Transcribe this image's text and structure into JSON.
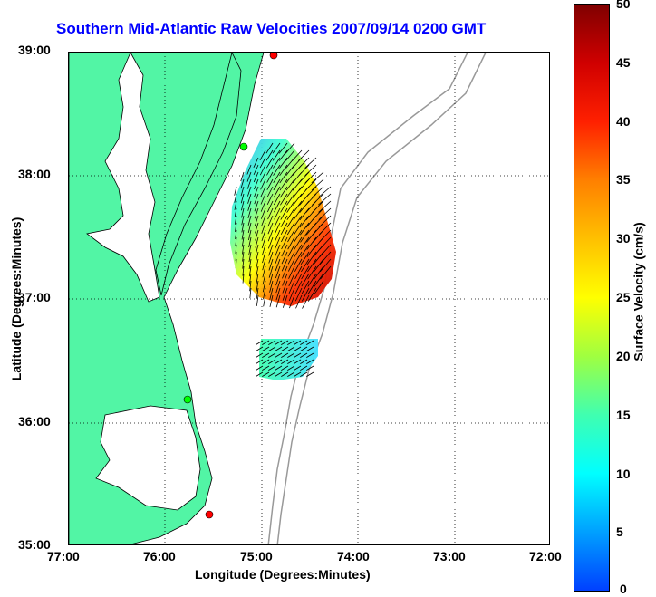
{
  "title": "Southern Mid-Atlantic Raw Velocities 2007/09/14 0200 GMT",
  "axes": {
    "xlabel": "Longitude (Degrees:Minutes)",
    "ylabel": "Latitude (Degrees:Minutes)",
    "x_ticks": [
      "77:00",
      "76:00",
      "75:00",
      "74:00",
      "73:00",
      "72:00"
    ],
    "y_ticks": [
      "39:00",
      "38:00",
      "37:00",
      "36:00",
      "35:00"
    ]
  },
  "colorbar": {
    "label": "Surface Velocity (cm/s)",
    "ticks": [
      "50",
      "45",
      "40",
      "35",
      "30",
      "25",
      "20",
      "15",
      "10",
      "5",
      "0"
    ]
  },
  "colors": {
    "land": "#52f5a5",
    "coastline": "#000000",
    "bathymetry": "#999999",
    "title": "#0000ff"
  }
}
